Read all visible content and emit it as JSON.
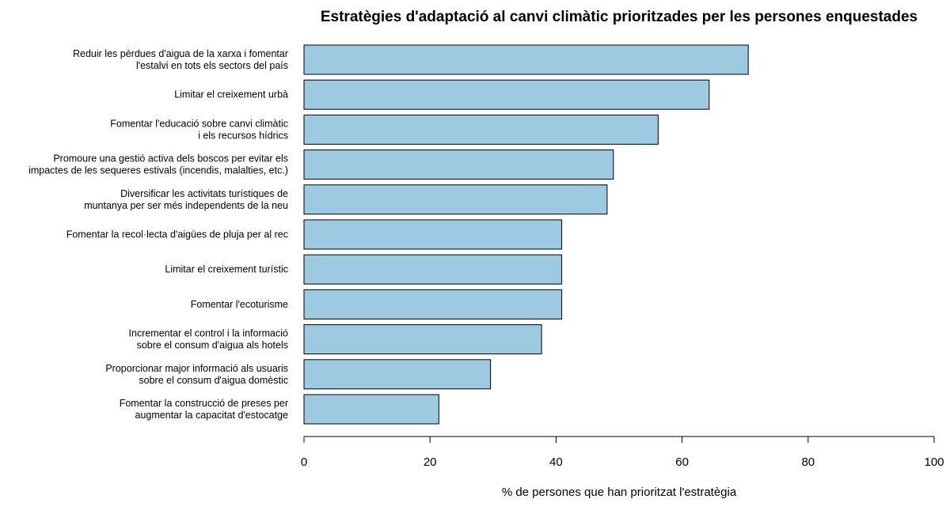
{
  "chart_data": {
    "type": "bar",
    "orientation": "horizontal",
    "title": "Estratègies d'adaptació al canvi climàtic prioritzades per les persones enquestades",
    "xlabel": "% de persones que han prioritzat l'estratègia",
    "ylabel": "",
    "xlim": [
      0,
      100
    ],
    "ticks": [
      0,
      20,
      40,
      60,
      80,
      100
    ],
    "grid": false,
    "bar_color": "#9ecae1",
    "categories": [
      [
        "Reduir les pèrdues d'aigua de la xarxa i fomentar",
        "l'estalvi en tots els sectors del país"
      ],
      [
        "Limitar el creixement urbà"
      ],
      [
        "Fomentar l'educació sobre canvi climàtic",
        "i els recursos hídrics"
      ],
      [
        "Promoure una gestió activa dels boscos per evitar els",
        "impactes de les sequeres estivals (incendis, malalties, etc.)"
      ],
      [
        "Diversificar les activitats turístiques de",
        "muntanya per ser més independents de la neu"
      ],
      [
        "Fomentar la recol·lecta d'aigües de pluja per al rec"
      ],
      [
        "Limitar el creixement turístic"
      ],
      [
        "Fomentar l'ecoturisme"
      ],
      [
        "Incrementar el control i la informació",
        "sobre el consum d'aigua als hotels"
      ],
      [
        "Proporcionar major informació als usuaris",
        "sobre el consum d'aigua domèstic"
      ],
      [
        "Fomentar la construcció de preses per",
        "augmentar la capacitat d'estocatge"
      ]
    ],
    "values": [
      70.5,
      64.3,
      56.2,
      49.1,
      48.1,
      40.9,
      40.9,
      40.9,
      37.7,
      29.6,
      21.4
    ]
  }
}
